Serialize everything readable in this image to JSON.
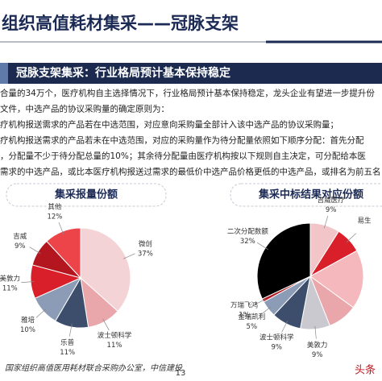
{
  "header": {
    "title": "组织高值耗材集采——冠脉支架",
    "banner": "冠脉支架集采：行业格局预计基本保持稳定"
  },
  "body": {
    "lines": [
      "合量的34万个，医疗机构自主选择情况下，行业格局预计基本保持稳定，龙头企业有望进一步提升份",
      "文件，中选产品的协议采购量的确定原则为：",
      "疗机构报送需求的产品若在中选范围，对应意向采购量全部计入该中选产品的协议采购量；",
      "疗机构报送需求的产品若未在中选范围，对应的采购量作为待分配量依照如下顺序分配：首先分配",
      "，分配量不少于待分配总量的10%；其余待分配量由医疗机构按以下规则自主决定，可分配给本医",
      "需求的中选产品，或比本医疗机构报送过需求的最低价中选产品价格更低的中选产品，或排名为前五名"
    ]
  },
  "chart_data": [
    {
      "type": "pie",
      "title": "集采报量份额",
      "categories": [
        "微创",
        "波士顿科学",
        "乐普",
        "雅培",
        "美敦力",
        "吉威",
        "其他"
      ],
      "values": [
        37,
        11,
        11,
        10,
        11,
        9,
        12
      ],
      "value_labels": [
        "37%",
        "11%",
        "11%",
        "10%",
        "11%",
        "9%",
        "12%"
      ],
      "colors": [
        "#f3d3d5",
        "#e9a7ab",
        "#3d4e6d",
        "#8c9cb6",
        "#d81f2a",
        "#b3161f",
        "#ec4449"
      ]
    },
    {
      "type": "pie",
      "title": "集采中标结果对应份额",
      "categories": [
        "吉威医疗",
        "易生",
        null,
        null,
        "美敦力",
        "波士顿科学",
        "金瑞凯利",
        "万瑞飞鸿",
        "二次分配数额"
      ],
      "values": [
        9,
        8,
        18,
        9,
        9,
        9,
        5,
        1,
        32
      ],
      "value_labels": [
        "9%",
        null,
        null,
        null,
        "9%",
        "9%",
        "5%",
        "1%",
        "32%"
      ],
      "colors": [
        "#f2c6c8",
        "#d81f2a",
        "#f5b8bc",
        "#e9a7ab",
        "#c9c9cf",
        "#3d4e6d",
        "#8c9cb6",
        "#b3161f",
        "#000000"
      ]
    }
  ],
  "footer": {
    "source": "国家组织高值医用耗材联合采购办公室，中信建投",
    "page": "13",
    "watermark": "头条"
  }
}
